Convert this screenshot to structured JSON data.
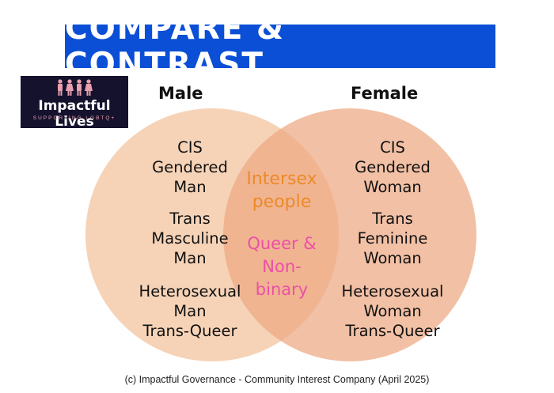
{
  "banner": {
    "title": "COMPARE & CONTRAST",
    "color": "#0b4fd6"
  },
  "logo": {
    "title": "Impactful Lives",
    "subtitle": "SUPPORTING LGBTQ+",
    "figure_color": "#e8a0ad",
    "background": "#15122e"
  },
  "venn": {
    "left": {
      "header": "Male",
      "color": "#f4cbaa",
      "groups": [
        {
          "lines": [
            "CIS",
            "Gendered",
            "Man"
          ]
        },
        {
          "lines": [
            "Trans",
            "Masculine",
            "Man"
          ]
        },
        {
          "lines": [
            "Heterosexual",
            "Man",
            "Trans-Queer"
          ]
        }
      ]
    },
    "right": {
      "header": "Female",
      "color": "#eda882",
      "groups": [
        {
          "lines": [
            "CIS",
            "Gendered",
            "Woman"
          ]
        },
        {
          "lines": [
            "Trans",
            "Feminine",
            "Woman"
          ]
        },
        {
          "lines": [
            "Heterosexual",
            "Woman",
            "Trans-Queer"
          ]
        }
      ]
    },
    "overlap": {
      "groups": [
        {
          "lines": [
            "Intersex",
            "people"
          ],
          "color": "#ec8a2a"
        },
        {
          "lines": [
            "Queer &",
            "Non-",
            "binary"
          ],
          "color": "#ec4fa6"
        }
      ]
    }
  },
  "footer": "(c)  Impactful Governance - Community  Interest Company (April 2025)"
}
